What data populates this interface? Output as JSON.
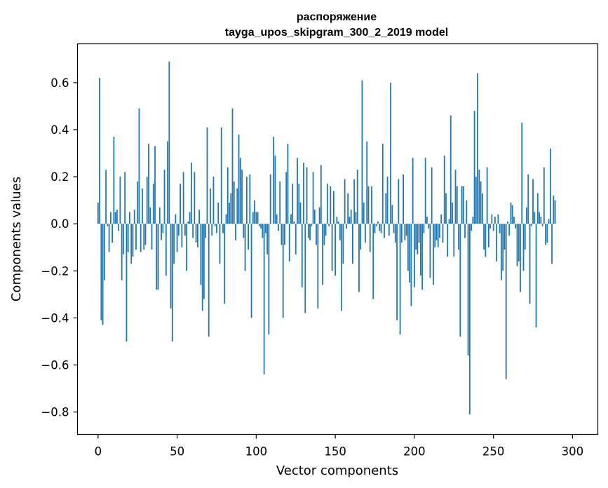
{
  "chart_data": {
    "type": "bar",
    "title_line1": "распоряжение",
    "title_line2": "tayga_upos_skipgram_300_2_2019 model",
    "xlabel": "Vector components",
    "ylabel": "Components values",
    "xlim": [
      -13,
      316
    ],
    "ylim": [
      -0.895,
      0.765
    ],
    "xticks": [
      0,
      50,
      100,
      150,
      200,
      250,
      300
    ],
    "xtick_labels": [
      "0",
      "50",
      "100",
      "150",
      "200",
      "250",
      "300"
    ],
    "yticks": [
      -0.8,
      -0.6,
      -0.4,
      -0.2,
      0.0,
      0.2,
      0.4,
      0.6
    ],
    "ytick_labels": [
      "−0.8",
      "−0.6",
      "−0.4",
      "−0.2",
      "0.0",
      "0.2",
      "0.4",
      "0.6"
    ],
    "bar_color": "#1f77b4",
    "grid": false,
    "values": [
      0.09,
      0.62,
      -0.41,
      -0.43,
      -0.24,
      0.23,
      -0.01,
      -0.12,
      0.05,
      -0.08,
      0.37,
      0.05,
      0.06,
      -0.03,
      0.2,
      -0.24,
      -0.13,
      0.22,
      -0.5,
      -0.12,
      0.05,
      -0.17,
      -0.14,
      0.06,
      -0.11,
      0.18,
      0.49,
      -0.12,
      0.15,
      -0.11,
      -0.09,
      0.2,
      0.34,
      0.07,
      -0.11,
      0.17,
      0.33,
      -0.28,
      -0.28,
      0.07,
      -0.07,
      -0.04,
      0.23,
      -0.22,
      0.35,
      0.69,
      -0.36,
      -0.5,
      -0.17,
      0.04,
      -0.12,
      -0.05,
      0.17,
      -0.1,
      0.22,
      -0.05,
      -0.2,
      0.01,
      0.05,
      0.26,
      -0.06,
      0.22,
      -0.08,
      -0.1,
      0.06,
      -0.26,
      -0.37,
      -0.32,
      -0.06,
      0.41,
      -0.48,
      0.15,
      -0.05,
      0.2,
      -0.01,
      -0.04,
      0.09,
      -0.17,
      0.41,
      -0.04,
      -0.34,
      0.04,
      0.24,
      0.09,
      0.13,
      0.49,
      0.18,
      -0.07,
      0.15,
      0.38,
      0.28,
      0.23,
      -0.06,
      -0.2,
      0.2,
      -0.11,
      0.21,
      -0.4,
      0.05,
      0.1,
      0.05,
      0.05,
      -0.01,
      -0.02,
      -0.06,
      -0.64,
      -0.04,
      -0.13,
      -0.47,
      0.21,
      0.0,
      0.37,
      0.29,
      0.04,
      -0.03,
      0.18,
      -0.09,
      -0.4,
      -0.09,
      0.22,
      0.34,
      -0.16,
      0.04,
      0.17,
      0.01,
      -0.13,
      0.28,
      0.17,
      0.09,
      -0.27,
      0.26,
      -0.38,
      0.24,
      -0.06,
      -0.07,
      -0.01,
      0.22,
      0.06,
      -0.09,
      -0.36,
      0.07,
      0.25,
      -0.26,
      -0.09,
      -0.05,
      0.17,
      -0.01,
      0.16,
      -0.2,
      0.14,
      -0.22,
      0.03,
      0.01,
      -0.07,
      -0.37,
      -0.17,
      0.19,
      -0.02,
      0.13,
      0.03,
      0.06,
      -0.17,
      0.19,
      0.05,
      0.23,
      -0.29,
      -0.11,
      0.61,
      0.09,
      -0.08,
      0.35,
      0.16,
      -0.12,
      0.16,
      -0.32,
      -0.04,
      -0.01,
      0.01,
      -0.03,
      -0.04,
      0.34,
      -0.06,
      0.13,
      0.2,
      -0.05,
      0.6,
      0.08,
      -0.04,
      -0.08,
      -0.41,
      0.19,
      -0.47,
      -0.08,
      0.21,
      -0.07,
      -0.05,
      -0.2,
      -0.25,
      -0.35,
      0.28,
      -0.27,
      -0.11,
      -0.13,
      -0.08,
      -0.22,
      -0.28,
      -0.04,
      0.28,
      0.03,
      -0.02,
      -0.23,
      0.24,
      -0.26,
      -0.1,
      -0.07,
      -0.1,
      -0.06,
      0.04,
      -0.08,
      0.29,
      0.13,
      -0.14,
      0.02,
      0.46,
      0.09,
      -0.14,
      0.23,
      0.16,
      -0.11,
      -0.48,
      0.16,
      0.16,
      -0.06,
      0.1,
      -0.56,
      -0.81,
      -0.03,
      0.03,
      0.48,
      0.2,
      0.64,
      0.23,
      0.18,
      0.13,
      -0.11,
      -0.14,
      0.24,
      -0.1,
      -0.02,
      0.04,
      -0.03,
      0.03,
      -0.16,
      0.04,
      -0.04,
      -0.24,
      -0.2,
      -0.11,
      -0.66,
      0.01,
      -0.05,
      0.09,
      0.08,
      0.03,
      -0.02,
      -0.18,
      -0.16,
      -0.29,
      0.43,
      -0.2,
      -0.11,
      0.07,
      0.21,
      -0.34,
      -0.01,
      0.19,
      0.05,
      -0.44,
      0.13,
      0.05,
      0.03,
      -0.01,
      0.24,
      -0.09,
      -0.08,
      0.02,
      0.32,
      -0.17,
      0.12,
      0.1
    ]
  }
}
